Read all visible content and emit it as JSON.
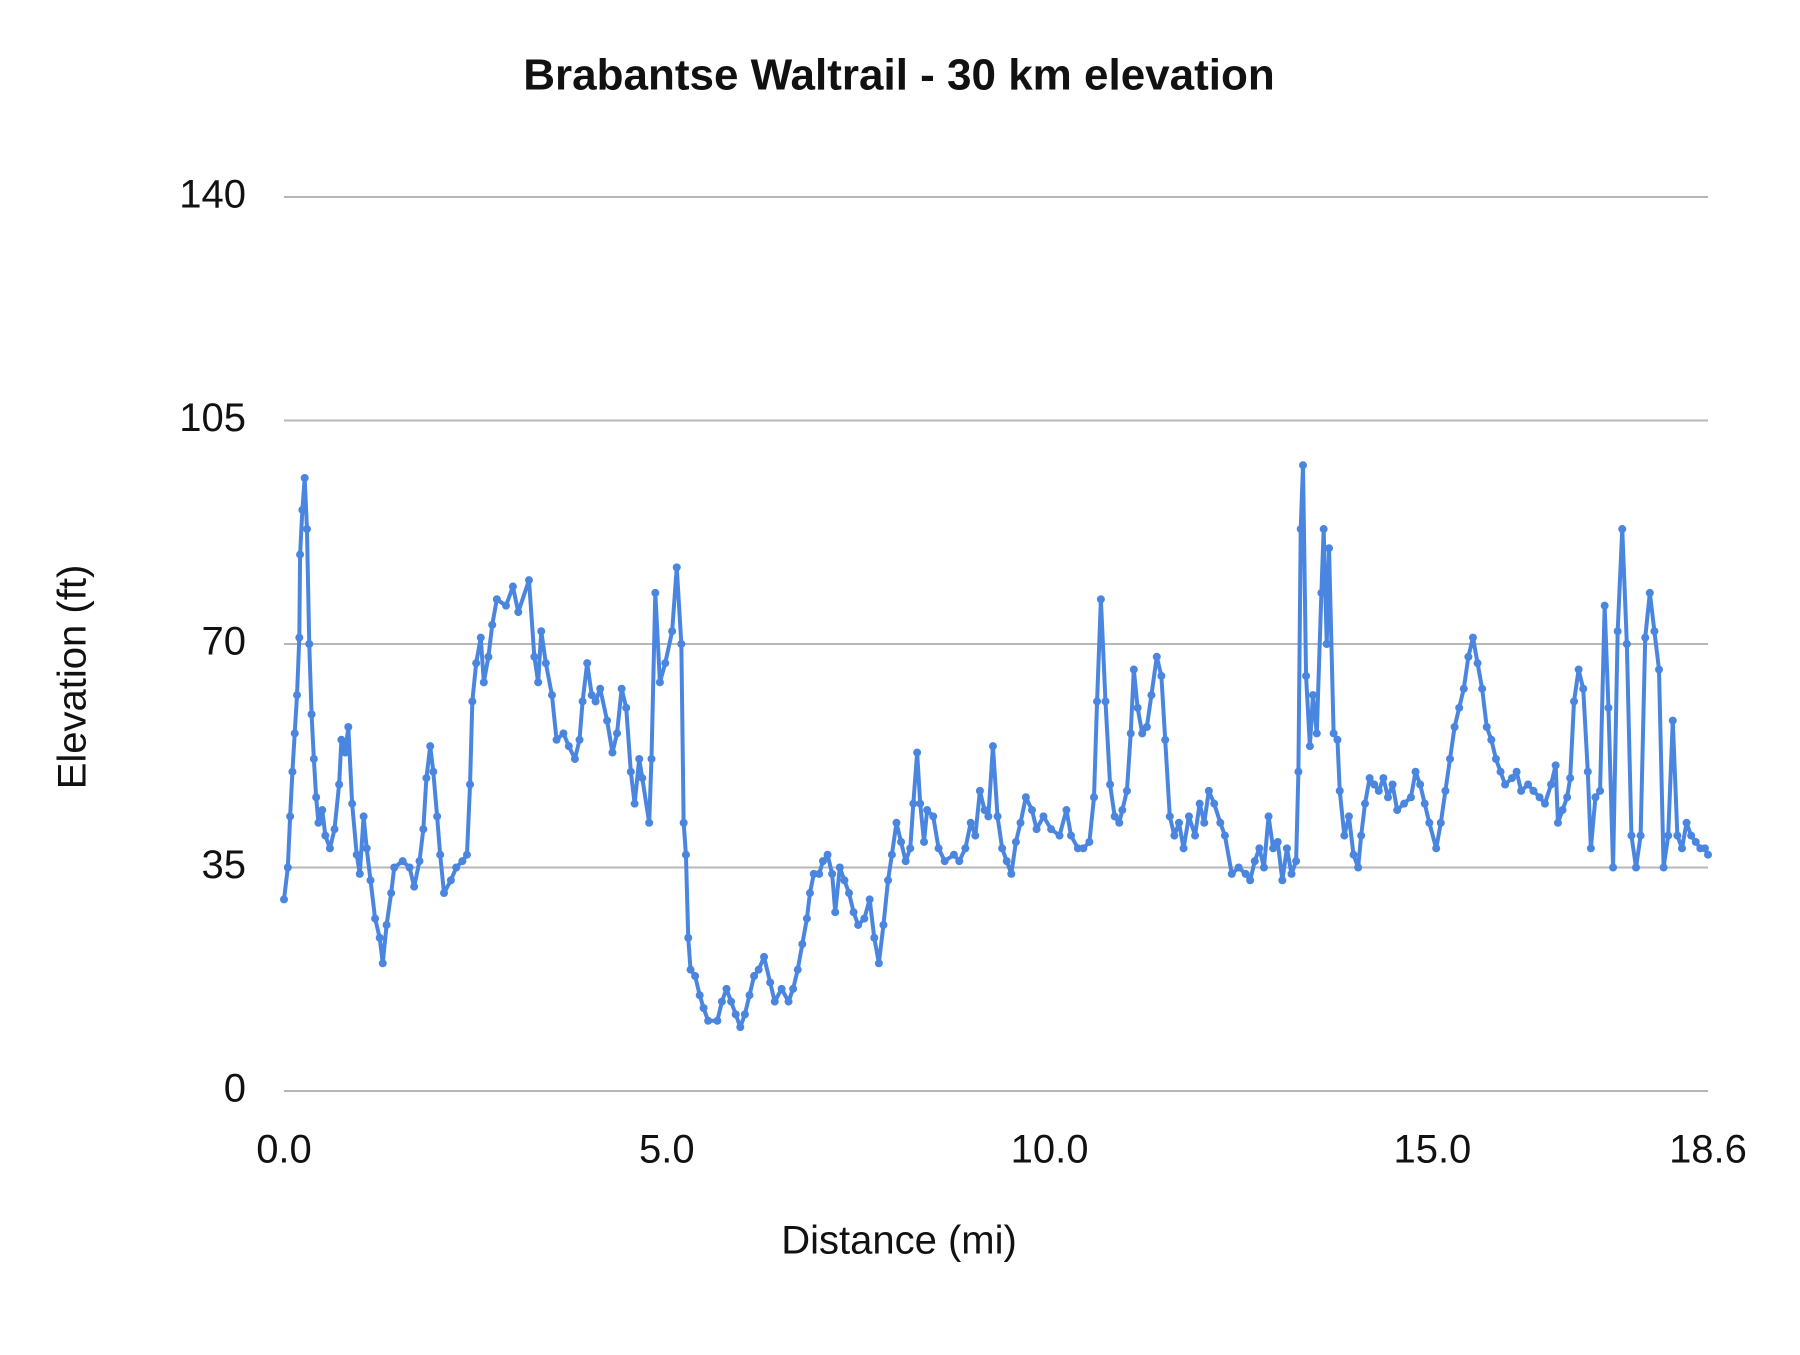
{
  "chart_data": {
    "type": "line",
    "title": "Brabantse Waltrail - 30 km elevation",
    "x_label": "Distance (mi)",
    "y_label": "Elevation (ft)",
    "color": "#4a86e0",
    "grid": true,
    "markers": true,
    "xlim": [
      0,
      18.6
    ],
    "xticks": [
      {
        "value": 0,
        "label": "0.0"
      },
      {
        "value": 5,
        "label": "5.0"
      },
      {
        "value": 10,
        "label": "10.0"
      },
      {
        "value": 15,
        "label": "15.0"
      },
      18.6
    ],
    "ylim": [
      0,
      140
    ],
    "yticks": [
      0,
      35,
      70,
      105,
      140
    ],
    "x": [
      0,
      0.05,
      0.08,
      0.11,
      0.14,
      0.17,
      0.2,
      0.21,
      0.24,
      0.27,
      0.3,
      0.33,
      0.36,
      0.39,
      0.42,
      0.45,
      0.5,
      0.54,
      0.6,
      0.66,
      0.72,
      0.75,
      0.8,
      0.84,
      0.89,
      0.95,
      0.99,
      1.04,
      1.08,
      1.13,
      1.19,
      1.25,
      1.29,
      1.34,
      1.4,
      1.44,
      1.55,
      1.64,
      1.7,
      1.77,
      1.82,
      1.86,
      1.91,
      1.95,
      2.0,
      2.04,
      2.09,
      2.18,
      2.25,
      2.33,
      2.39,
      2.43,
      2.46,
      2.51,
      2.57,
      2.61,
      2.67,
      2.72,
      2.78,
      2.9,
      2.99,
      3.06,
      3.2,
      3.27,
      3.32,
      3.36,
      3.42,
      3.5,
      3.56,
      3.65,
      3.72,
      3.8,
      3.86,
      3.9,
      3.96,
      4.02,
      4.07,
      4.13,
      4.22,
      4.29,
      4.35,
      4.41,
      4.47,
      4.53,
      4.58,
      4.64,
      4.68,
      4.77,
      4.8,
      4.85,
      4.91,
      4.98,
      5.07,
      5.13,
      5.19,
      5.22,
      5.25,
      5.28,
      5.31,
      5.37,
      5.43,
      5.48,
      5.54,
      5.66,
      5.72,
      5.78,
      5.84,
      5.9,
      5.96,
      6.02,
      6.08,
      6.14,
      6.2,
      6.27,
      6.35,
      6.41,
      6.5,
      6.59,
      6.65,
      6.71,
      6.77,
      6.83,
      6.87,
      6.92,
      6.99,
      7.04,
      7.1,
      7.16,
      7.2,
      7.26,
      7.32,
      7.38,
      7.44,
      7.5,
      7.58,
      7.65,
      7.71,
      7.77,
      7.83,
      7.89,
      7.94,
      8.0,
      8.06,
      8.12,
      8.18,
      8.22,
      8.27,
      8.31,
      8.36,
      8.4,
      8.48,
      8.55,
      8.63,
      8.75,
      8.82,
      8.9,
      8.97,
      9.03,
      9.09,
      9.15,
      9.2,
      9.26,
      9.32,
      9.38,
      9.44,
      9.5,
      9.56,
      9.62,
      9.69,
      9.77,
      9.83,
      9.92,
      10.02,
      10.13,
      10.22,
      10.28,
      10.37,
      10.44,
      10.52,
      10.58,
      10.62,
      10.67,
      10.73,
      10.79,
      10.85,
      10.91,
      10.95,
      11.01,
      11.06,
      11.1,
      11.15,
      11.21,
      11.27,
      11.33,
      11.4,
      11.46,
      11.51,
      11.57,
      11.63,
      11.69,
      11.75,
      11.82,
      11.9,
      11.96,
      12.02,
      12.08,
      12.15,
      12.23,
      12.29,
      12.38,
      12.47,
      12.56,
      12.62,
      12.68,
      12.74,
      12.8,
      12.86,
      12.92,
      12.98,
      13.04,
      13.1,
      13.16,
      13.22,
      13.25,
      13.28,
      13.31,
      13.35,
      13.4,
      13.44,
      13.49,
      13.55,
      13.58,
      13.62,
      13.65,
      13.71,
      13.76,
      13.79,
      13.85,
      13.91,
      13.97,
      14.03,
      14.07,
      14.12,
      14.18,
      14.24,
      14.3,
      14.36,
      14.42,
      14.48,
      14.54,
      14.63,
      14.72,
      14.78,
      14.84,
      14.9,
      14.96,
      15.05,
      15.11,
      15.17,
      15.23,
      15.29,
      15.35,
      15.41,
      15.47,
      15.53,
      15.59,
      15.65,
      15.71,
      15.77,
      15.83,
      15.89,
      15.95,
      16.04,
      16.1,
      16.16,
      16.25,
      16.32,
      16.4,
      16.47,
      16.55,
      16.61,
      16.64,
      16.7,
      16.76,
      16.8,
      16.85,
      16.91,
      16.97,
      17.03,
      17.07,
      17.13,
      17.19,
      17.25,
      17.3,
      17.36,
      17.42,
      17.48,
      17.54,
      17.6,
      17.66,
      17.72,
      17.78,
      17.84,
      17.9,
      17.96,
      18.02,
      18.08,
      18.14,
      18.2,
      18.26,
      18.32,
      18.38,
      18.44,
      18.5,
      18.56,
      18.6
    ],
    "values": [
      30,
      35,
      43,
      50,
      56,
      62,
      71,
      84,
      91,
      96,
      88,
      70,
      59,
      52,
      46,
      42,
      44,
      40,
      38,
      41,
      48,
      55,
      53,
      57,
      45,
      37,
      34,
      43,
      38,
      33,
      27,
      24,
      20,
      26,
      31,
      35,
      36,
      35,
      32,
      36,
      41,
      49,
      54,
      50,
      43,
      37,
      31,
      33,
      35,
      36,
      37,
      48,
      61,
      67,
      71,
      64,
      68,
      73,
      77,
      76,
      79,
      75,
      80,
      68,
      64,
      72,
      67,
      62,
      55,
      56,
      54,
      52,
      55,
      61,
      67,
      62,
      61,
      63,
      58,
      53,
      56,
      63,
      60,
      50,
      45,
      52,
      49,
      42,
      52,
      78,
      64,
      67,
      72,
      82,
      70,
      42,
      37,
      24,
      19,
      18,
      15,
      13,
      11,
      11,
      14,
      16,
      14,
      12,
      10,
      12,
      15,
      18,
      19,
      21,
      17,
      14,
      16,
      14,
      16,
      19,
      23,
      27,
      31,
      34,
      34,
      36,
      37,
      34,
      28,
      35,
      33,
      31,
      28,
      26,
      27,
      30,
      24,
      20,
      26,
      33,
      37,
      42,
      39,
      36,
      38,
      45,
      53,
      45,
      39,
      44,
      43,
      38,
      36,
      37,
      36,
      38,
      42,
      40,
      47,
      44,
      43,
      54,
      43,
      38,
      36,
      34,
      39,
      42,
      46,
      44,
      41,
      43,
      41,
      40,
      44,
      40,
      38,
      38,
      39,
      46,
      61,
      77,
      61,
      48,
      43,
      42,
      44,
      47,
      56,
      66,
      60,
      56,
      57,
      62,
      68,
      65,
      55,
      43,
      40,
      42,
      38,
      43,
      40,
      45,
      42,
      47,
      45,
      42,
      40,
      34,
      35,
      34,
      33,
      36,
      38,
      35,
      43,
      38,
      39,
      33,
      38,
      34,
      36,
      50,
      88,
      98,
      65,
      54,
      62,
      56,
      78,
      88,
      70,
      85,
      56,
      55,
      47,
      40,
      43,
      37,
      35,
      40,
      45,
      49,
      48,
      47,
      49,
      46,
      48,
      44,
      45,
      46,
      50,
      48,
      45,
      42,
      38,
      42,
      47,
      52,
      57,
      60,
      63,
      68,
      71,
      67,
      63,
      57,
      55,
      52,
      50,
      48,
      49,
      50,
      47,
      48,
      47,
      46,
      45,
      48,
      51,
      42,
      44,
      46,
      49,
      61,
      66,
      63,
      50,
      38,
      46,
      47,
      76,
      60,
      35,
      72,
      88,
      70,
      40,
      35,
      40,
      71,
      78,
      72,
      66,
      35,
      40,
      58,
      40,
      38,
      42,
      40,
      39,
      38,
      38,
      37
    ]
  }
}
